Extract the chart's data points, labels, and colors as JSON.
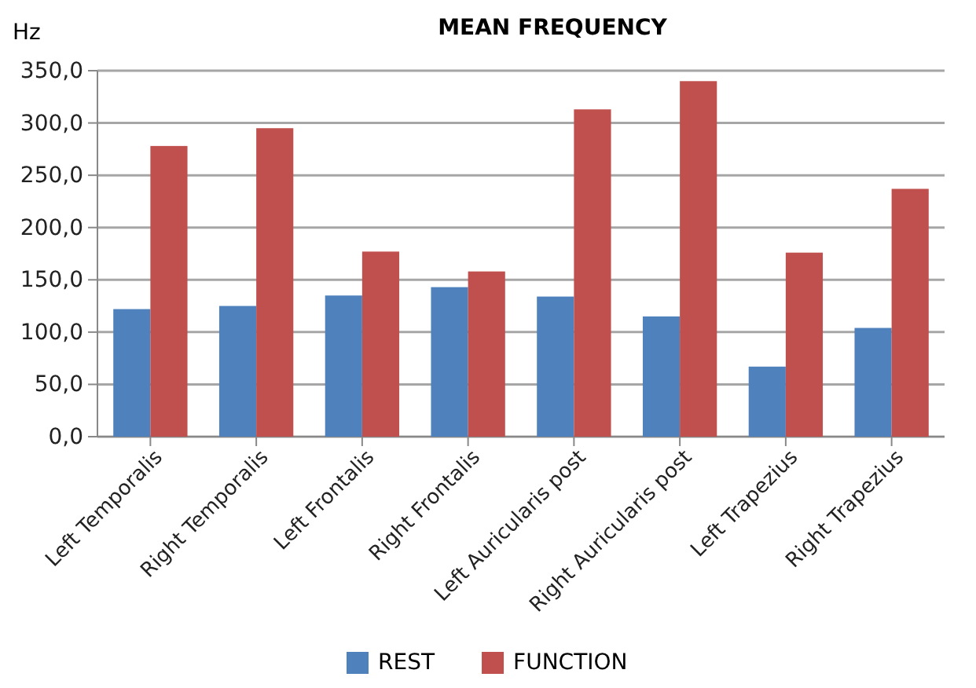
{
  "chart_data": {
    "type": "bar",
    "title": "MEAN FREQUENCY",
    "ylabel": "Hz",
    "categories": [
      "Left Temporalis",
      "Right Temporalis",
      "Left Frontalis",
      "Right Frontalis",
      "Left Auricularis post",
      "Right Auricularis post",
      "Left Trapezius",
      "Right Trapezius"
    ],
    "series": [
      {
        "name": "REST",
        "color": "#4f81bd",
        "values": [
          122,
          125,
          135,
          143,
          134,
          115,
          67,
          104
        ]
      },
      {
        "name": "FUNCTION",
        "color": "#c0504d",
        "values": [
          278,
          295,
          177,
          158,
          313,
          340,
          176,
          237
        ]
      }
    ],
    "ylim": [
      0,
      350
    ],
    "yticks": [
      {
        "value": 0,
        "label": "0,0"
      },
      {
        "value": 50,
        "label": "50,0"
      },
      {
        "value": 100,
        "label": "100,0"
      },
      {
        "value": 150,
        "label": "150,0"
      },
      {
        "value": 200,
        "label": "200,0"
      },
      {
        "value": 250,
        "label": "250,0"
      },
      {
        "value": 300,
        "label": "300,0"
      },
      {
        "value": 350,
        "label": "350,0"
      }
    ],
    "grid": "y",
    "legend": "bottom"
  }
}
